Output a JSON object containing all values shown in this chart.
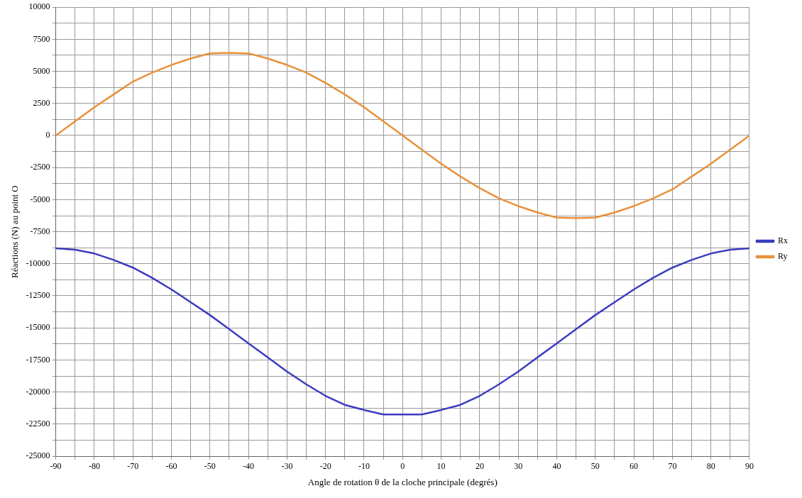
{
  "chart_data": {
    "type": "line",
    "xlabel": "Angle de rotation θ de la cloche principale (degrés)",
    "ylabel": "Réactions (N) au point O",
    "x": [
      -90,
      -85,
      -80,
      -75,
      -70,
      -65,
      -60,
      -55,
      -50,
      -45,
      -40,
      -35,
      -30,
      -25,
      -20,
      -15,
      -10,
      -5,
      0,
      5,
      10,
      15,
      20,
      25,
      30,
      35,
      40,
      45,
      50,
      55,
      60,
      65,
      70,
      75,
      80,
      85,
      90
    ],
    "series": [
      {
        "name": "Rx",
        "color": "#3c3cc0",
        "values": [
          -8800,
          -8900,
          -9200,
          -9700,
          -10300,
          -11100,
          -12000,
          -13000,
          -14000,
          -15100,
          -16200,
          -17300,
          -18400,
          -19400,
          -20300,
          -21000,
          -21400,
          -21750,
          -21750,
          -21750,
          -21400,
          -21000,
          -20300,
          -19400,
          -18400,
          -17300,
          -16200,
          -15100,
          -14000,
          -13000,
          -12000,
          -11100,
          -10300,
          -9700,
          -9200,
          -8900,
          -8800
        ]
      },
      {
        "name": "Ry",
        "color": "#e8913a",
        "values": [
          0,
          1100,
          2200,
          3200,
          4200,
          4900,
          5500,
          6000,
          6400,
          6450,
          6400,
          6000,
          5500,
          4900,
          4100,
          3200,
          2200,
          1100,
          0,
          -1100,
          -2200,
          -3200,
          -4100,
          -4900,
          -5500,
          -6000,
          -6400,
          -6450,
          -6400,
          -6000,
          -5500,
          -4900,
          -4200,
          -3200,
          -2200,
          -1100,
          0
        ]
      }
    ],
    "xlim": [
      -90,
      90
    ],
    "xticks": [
      -90,
      {
        "value": -85,
        "label": null
      },
      -80,
      {
        "value": -75,
        "label": null
      },
      -70,
      {
        "value": -65,
        "label": null
      },
      -60,
      {
        "value": -55,
        "label": null
      },
      -50,
      {
        "value": -45,
        "label": null
      },
      -40,
      {
        "value": -35,
        "label": null
      },
      -30,
      {
        "value": -25,
        "label": null
      },
      -20,
      {
        "value": -15,
        "label": null
      },
      -10,
      {
        "value": -5,
        "label": null
      },
      0,
      {
        "value": 5,
        "label": null
      },
      10,
      {
        "value": 15,
        "label": null
      },
      20,
      {
        "value": 25,
        "label": null
      },
      30,
      {
        "value": 35,
        "label": null
      },
      40,
      {
        "value": 45,
        "label": null
      },
      50,
      {
        "value": 55,
        "label": null
      },
      60,
      {
        "value": 65,
        "label": null
      },
      70,
      {
        "value": 75,
        "label": null
      },
      80,
      {
        "value": 85,
        "label": null
      },
      90
    ],
    "ylim": [
      -25000,
      10000
    ],
    "yticks": [
      -25000,
      {
        "value": -23750,
        "label": null
      },
      -22500,
      {
        "value": -21250,
        "label": null
      },
      -20000,
      {
        "value": -18750,
        "label": null
      },
      -17500,
      {
        "value": -16250,
        "label": null
      },
      -15000,
      {
        "value": -13750,
        "label": null
      },
      -12500,
      {
        "value": -11250,
        "label": null
      },
      -10000,
      {
        "value": -8750,
        "label": null
      },
      -7500,
      {
        "value": -6250,
        "label": null
      },
      -5000,
      {
        "value": -3750,
        "label": null
      },
      -2500,
      {
        "value": -1250,
        "label": null
      },
      0,
      {
        "value": 1250,
        "label": null
      },
      2500,
      {
        "value": 3750,
        "label": null
      },
      5000,
      {
        "value": 6250,
        "label": null
      },
      7500,
      {
        "value": 8750,
        "label": null
      },
      10000
    ],
    "grid": true,
    "legend": "right",
    "marker": "none",
    "line_style": "solid"
  }
}
